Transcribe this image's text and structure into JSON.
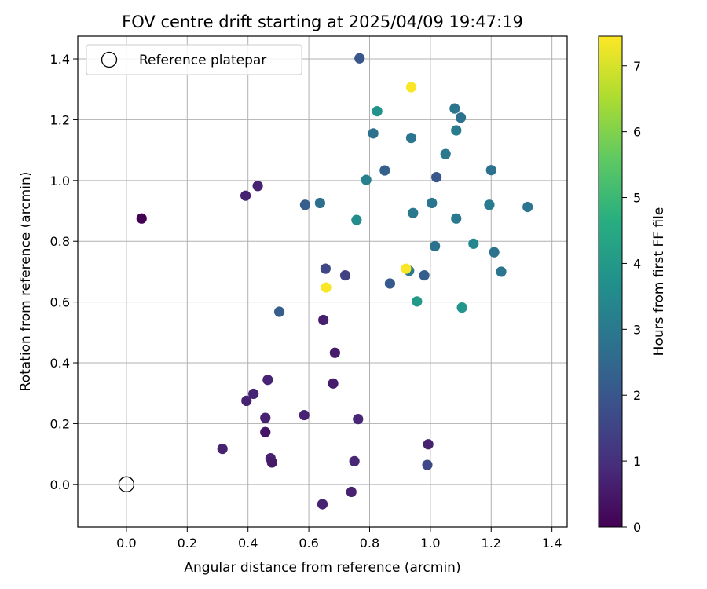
{
  "chart_data": {
    "type": "scatter",
    "title": "FOV centre drift starting at 2025/04/09 19:47:19",
    "xlabel": "Angular distance from reference (arcmin)",
    "ylabel": "Rotation from reference (arcmin)",
    "xlim": [
      -0.16,
      1.45
    ],
    "ylim": [
      -0.14,
      1.475
    ],
    "xticks": [
      0.0,
      0.2,
      0.4,
      0.6,
      0.8,
      1.0,
      1.2,
      1.4
    ],
    "xtick_labels": [
      "0.0",
      "0.2",
      "0.4",
      "0.6",
      "0.8",
      "1.0",
      "1.2",
      "1.4"
    ],
    "yticks": [
      0.0,
      0.2,
      0.4,
      0.6,
      0.8,
      1.0,
      1.2,
      1.4
    ],
    "ytick_labels": [
      "0.0",
      "0.2",
      "0.4",
      "0.6",
      "0.8",
      "1.0",
      "1.2",
      "1.4"
    ],
    "grid": true,
    "legend": {
      "position": "top-left",
      "entries": [
        {
          "label": "Reference platepar",
          "marker": "open-circle"
        }
      ]
    },
    "reference_point": {
      "x": 0.0,
      "y": 0.0
    },
    "colorbar": {
      "label": "Hours from first FF file",
      "colormap": "viridis",
      "range": [
        0,
        7.45
      ],
      "ticks": [
        0,
        1,
        2,
        3,
        4,
        5,
        6,
        7
      ],
      "tick_labels": [
        "0",
        "1",
        "2",
        "3",
        "4",
        "5",
        "6",
        "7"
      ]
    },
    "points": [
      {
        "x": 0.05,
        "y": 0.875,
        "c": 0.0
      },
      {
        "x": 0.316,
        "y": 0.117,
        "c": 0.7
      },
      {
        "x": 0.395,
        "y": 0.275,
        "c": 0.7
      },
      {
        "x": 0.418,
        "y": 0.298,
        "c": 0.75
      },
      {
        "x": 0.392,
        "y": 0.95,
        "c": 0.7
      },
      {
        "x": 0.432,
        "y": 0.982,
        "c": 0.7
      },
      {
        "x": 0.457,
        "y": 0.172,
        "c": 0.4
      },
      {
        "x": 0.457,
        "y": 0.219,
        "c": 0.7
      },
      {
        "x": 0.465,
        "y": 0.344,
        "c": 0.75
      },
      {
        "x": 0.474,
        "y": 0.086,
        "c": 0.75
      },
      {
        "x": 0.479,
        "y": 0.072,
        "c": 0.5
      },
      {
        "x": 0.585,
        "y": 0.228,
        "c": 0.75
      },
      {
        "x": 0.648,
        "y": 0.541,
        "c": 0.65
      },
      {
        "x": 0.645,
        "y": -0.065,
        "c": 0.75
      },
      {
        "x": 0.68,
        "y": 0.332,
        "c": 0.55
      },
      {
        "x": 0.686,
        "y": 0.433,
        "c": 0.55
      },
      {
        "x": 0.74,
        "y": -0.025,
        "c": 0.7
      },
      {
        "x": 0.75,
        "y": 0.076,
        "c": 0.8
      },
      {
        "x": 0.762,
        "y": 0.215,
        "c": 0.8
      },
      {
        "x": 0.993,
        "y": 0.132,
        "c": 0.7
      },
      {
        "x": 0.99,
        "y": 0.064,
        "c": 1.6
      },
      {
        "x": 0.503,
        "y": 0.568,
        "c": 2.2
      },
      {
        "x": 0.588,
        "y": 0.92,
        "c": 2.2
      },
      {
        "x": 0.637,
        "y": 0.926,
        "c": 2.7
      },
      {
        "x": 0.655,
        "y": 0.71,
        "c": 1.6
      },
      {
        "x": 0.72,
        "y": 0.688,
        "c": 1.4
      },
      {
        "x": 0.767,
        "y": 1.402,
        "c": 2.0
      },
      {
        "x": 0.757,
        "y": 0.87,
        "c": 3.6
      },
      {
        "x": 0.789,
        "y": 1.002,
        "c": 3.2
      },
      {
        "x": 0.812,
        "y": 1.155,
        "c": 2.8
      },
      {
        "x": 0.825,
        "y": 1.228,
        "c": 3.8
      },
      {
        "x": 0.85,
        "y": 1.033,
        "c": 2.3
      },
      {
        "x": 0.867,
        "y": 0.661,
        "c": 2.1
      },
      {
        "x": 0.93,
        "y": 0.703,
        "c": 3.0
      },
      {
        "x": 0.937,
        "y": 1.14,
        "c": 2.9
      },
      {
        "x": 0.943,
        "y": 0.893,
        "c": 3.0
      },
      {
        "x": 0.956,
        "y": 0.602,
        "c": 4.0
      },
      {
        "x": 0.98,
        "y": 0.688,
        "c": 2.2
      },
      {
        "x": 1.005,
        "y": 0.926,
        "c": 2.9
      },
      {
        "x": 1.015,
        "y": 0.784,
        "c": 2.8
      },
      {
        "x": 1.02,
        "y": 1.011,
        "c": 2.0
      },
      {
        "x": 1.05,
        "y": 1.087,
        "c": 3.0
      },
      {
        "x": 1.08,
        "y": 1.237,
        "c": 2.9
      },
      {
        "x": 1.085,
        "y": 1.165,
        "c": 3.1
      },
      {
        "x": 1.085,
        "y": 0.875,
        "c": 3.0
      },
      {
        "x": 1.1,
        "y": 1.207,
        "c": 2.8
      },
      {
        "x": 1.104,
        "y": 0.582,
        "c": 3.9
      },
      {
        "x": 1.142,
        "y": 0.792,
        "c": 3.4
      },
      {
        "x": 1.194,
        "y": 0.92,
        "c": 3.1
      },
      {
        "x": 1.2,
        "y": 1.034,
        "c": 2.8
      },
      {
        "x": 1.21,
        "y": 0.764,
        "c": 2.8
      },
      {
        "x": 1.233,
        "y": 0.7,
        "c": 2.9
      },
      {
        "x": 1.32,
        "y": 0.913,
        "c": 2.9
      },
      {
        "x": 0.937,
        "y": 1.307,
        "c": 7.4
      },
      {
        "x": 0.92,
        "y": 0.71,
        "c": 7.4
      },
      {
        "x": 0.657,
        "y": 0.648,
        "c": 7.4
      }
    ]
  }
}
